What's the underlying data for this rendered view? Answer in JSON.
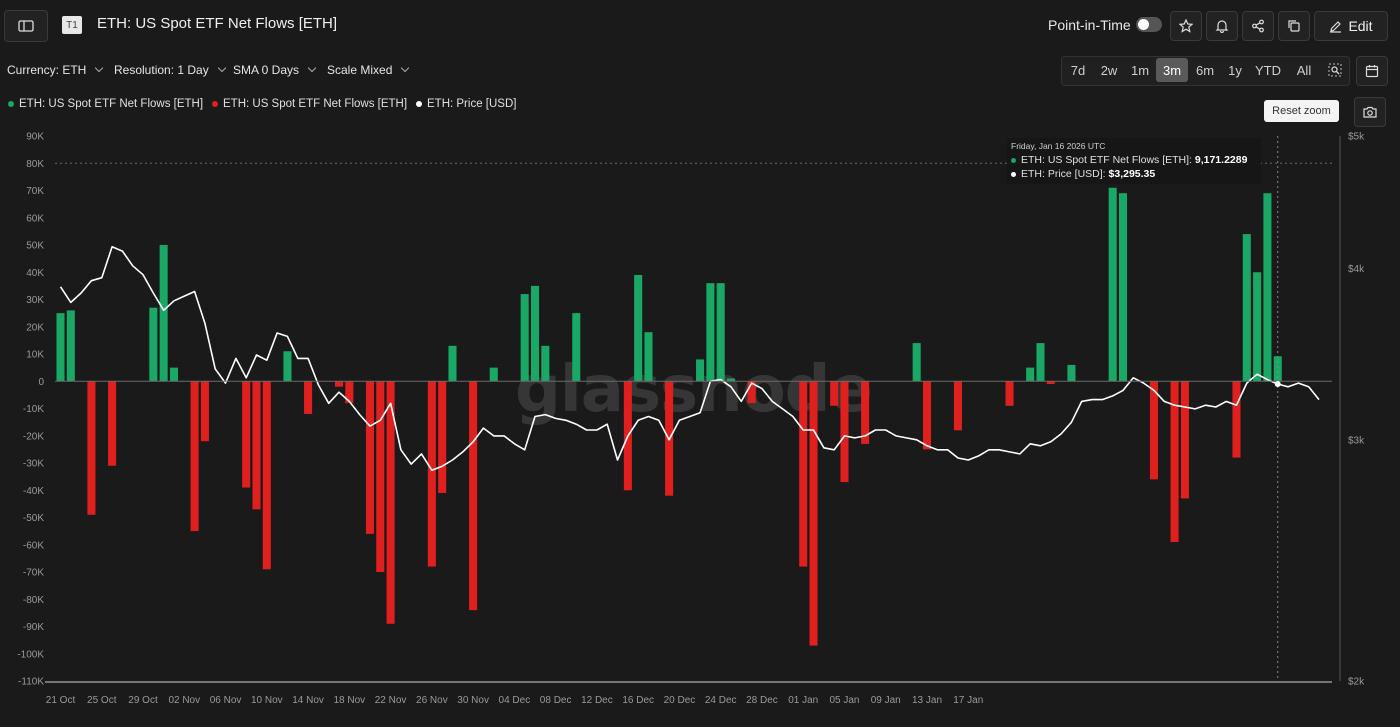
{
  "header": {
    "title": "ETH: US Spot ETF Net Flows [ETH]",
    "badge": "T1",
    "point_in_time_label": "Point-in-Time",
    "edit_label": "Edit"
  },
  "controls": {
    "currency": "Currency: ETH",
    "resolution": "Resolution: 1 Day",
    "sma": "SMA 0 Days",
    "scale": "Scale Mixed",
    "ranges": [
      "7d",
      "2w",
      "1m",
      "3m",
      "6m",
      "1y",
      "YTD",
      "All"
    ],
    "active_range": "3m"
  },
  "legend": [
    {
      "label": "ETH: US Spot ETF Net Flows [ETH]",
      "color": "#1aa866"
    },
    {
      "label": "ETH: US Spot ETF Net Flows [ETH]",
      "color": "#e0201e"
    },
    {
      "label": "ETH: Price [USD]",
      "color": "#ffffff"
    }
  ],
  "reset_zoom_label": "Reset zoom",
  "watermark": "glassnode",
  "tooltip": {
    "date": "Friday, Jan 16 2026 UTC",
    "flows_label": "ETH: US Spot ETF Net Flows [ETH]: ",
    "flows_value": "9,171.2289",
    "price_label": "ETH: Price [USD]: ",
    "price_value": "$3,295.35"
  },
  "colors": {
    "positive": "#1aa866",
    "negative": "#e0201e",
    "price_line": "#ffffff"
  },
  "chart_data": {
    "type": "bar",
    "x_start": "21 Oct",
    "x_ticks": [
      "21 Oct",
      "25 Oct",
      "29 Oct",
      "02 Nov",
      "06 Nov",
      "10 Nov",
      "14 Nov",
      "18 Nov",
      "22 Nov",
      "26 Nov",
      "30 Nov",
      "04 Dec",
      "08 Dec",
      "12 Dec",
      "16 Dec",
      "20 Dec",
      "24 Dec",
      "28 Dec",
      "01 Jan",
      "05 Jan",
      "09 Jan",
      "13 Jan",
      "17 Jan"
    ],
    "y_left": {
      "label": "Net Flows [ETH]",
      "min": -110000,
      "max": 90000,
      "ticks": [
        "90K",
        "80K",
        "70K",
        "60K",
        "50K",
        "40K",
        "30K",
        "20K",
        "10K",
        "0",
        "-10K",
        "-20K",
        "-30K",
        "-40K",
        "-50K",
        "-60K",
        "-70K",
        "-80K",
        "-90K",
        "-100K",
        "-110K"
      ]
    },
    "y_right": {
      "label": "Price [USD]",
      "scale": "log",
      "min": 2000,
      "max": 5000,
      "ticks": [
        "$5k",
        "$4k",
        "$3k",
        "$2k"
      ]
    },
    "series": [
      {
        "name": "ETH: US Spot ETF Net Flows [ETH]",
        "kind": "bar",
        "values": [
          25000,
          26000,
          0,
          -49000,
          0,
          -31000,
          0,
          0,
          0,
          27000,
          50000,
          5000,
          0,
          -55000,
          -22000,
          0,
          0,
          0,
          -39000,
          -47000,
          -69000,
          0,
          11000,
          0,
          -12000,
          0,
          0,
          -2000,
          -8000,
          0,
          -56000,
          -70000,
          -89000,
          0,
          0,
          0,
          -68000,
          -41000,
          13000,
          0,
          -84000,
          0,
          5000,
          0,
          0,
          32000,
          35000,
          13000,
          0,
          0,
          25000,
          0,
          0,
          0,
          0,
          -40000,
          39000,
          18000,
          0,
          -42000,
          0,
          0,
          8000,
          36000,
          36000,
          1000,
          0,
          -8000,
          0,
          0,
          0,
          0,
          -68000,
          -97000,
          0,
          -9000,
          -37000,
          0,
          -23000,
          0,
          0,
          0,
          0,
          14000,
          -25000,
          0,
          0,
          -18000,
          0,
          0,
          0,
          0,
          -9000,
          0,
          5000,
          14000,
          -1000,
          0,
          6000,
          0,
          0,
          0,
          71000,
          69000,
          0,
          0,
          -36000,
          0,
          -59000,
          -43000,
          0,
          0,
          0,
          0,
          -28000,
          54000,
          40000,
          69000,
          9171.2289,
          0,
          0,
          0,
          0
        ]
      },
      {
        "name": "ETH: Price [USD]",
        "kind": "line",
        "axis": "right",
        "values": [
          3880,
          3780,
          3840,
          3920,
          3940,
          4150,
          4120,
          4020,
          3960,
          3840,
          3730,
          3790,
          3820,
          3850,
          3650,
          3380,
          3300,
          3440,
          3330,
          3460,
          3430,
          3590,
          3570,
          3440,
          3440,
          3290,
          3190,
          3250,
          3200,
          3130,
          3070,
          3100,
          3190,
          2950,
          2880,
          2930,
          2850,
          2870,
          2900,
          2940,
          2990,
          3060,
          3020,
          3020,
          2980,
          2950,
          3120,
          3130,
          3110,
          3100,
          3080,
          3050,
          3050,
          3080,
          2900,
          3020,
          3100,
          3120,
          3100,
          3000,
          3100,
          3120,
          3140,
          3310,
          3320,
          3280,
          3200,
          3300,
          3270,
          3200,
          3160,
          3120,
          3050,
          3050,
          2960,
          2950,
          3020,
          3010,
          3020,
          3050,
          3050,
          3020,
          3010,
          3000,
          2970,
          2950,
          2950,
          2910,
          2900,
          2920,
          2950,
          2950,
          2940,
          2930,
          2980,
          2970,
          2990,
          3030,
          3090,
          3200,
          3210,
          3210,
          3230,
          3260,
          3330,
          3300,
          3260,
          3200,
          3180,
          3170,
          3160,
          3180,
          3170,
          3200,
          3180,
          3300,
          3350,
          3320,
          3295.35,
          3280,
          3300,
          3280,
          3210
        ]
      }
    ],
    "highlight": {
      "x": "16 Jan",
      "flows": 9171.2289,
      "price": 3295.35
    },
    "grid": false,
    "legend_position": "top-left"
  }
}
